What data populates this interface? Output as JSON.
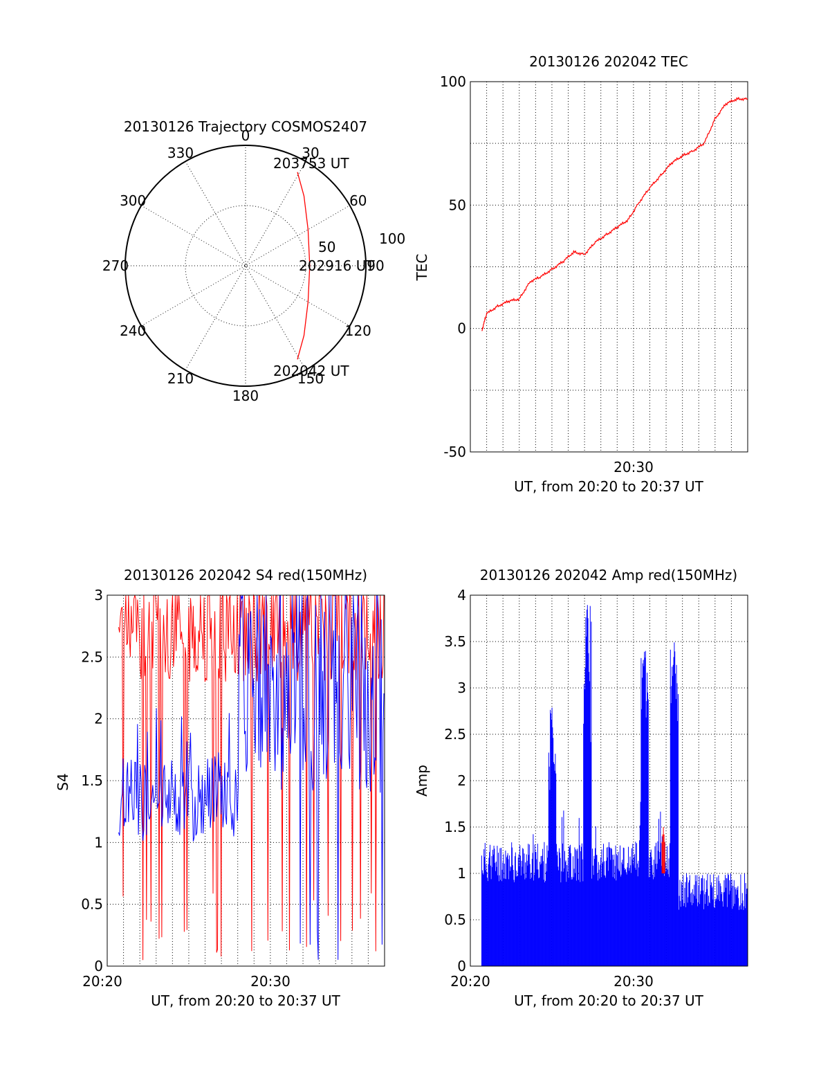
{
  "chart_data": [
    {
      "type": "polar",
      "title": "20130126 Trajectory COSMOS2407",
      "azimuth_labels": [
        "0",
        "30",
        "60",
        "90",
        "120",
        "150",
        "180",
        "210",
        "240",
        "270",
        "300",
        "330"
      ],
      "radius_labels": [
        "50",
        "100"
      ],
      "start_label": "202042 UT",
      "mid_label": "202916 UT",
      "end_label": "203753 UT",
      "trajectory": [
        {
          "az": 151,
          "el": 10
        },
        {
          "az": 140,
          "el": 22
        },
        {
          "az": 120,
          "el": 36
        },
        {
          "az": 90,
          "el": 42
        },
        {
          "az": 60,
          "el": 36
        },
        {
          "az": 40,
          "el": 22
        },
        {
          "az": 29,
          "el": 10
        }
      ],
      "series_color": "#ff0000"
    },
    {
      "type": "line",
      "title": "20130126 202042 TEC",
      "xlabel": "UT, from 20:20 to 20:37 UT",
      "ylabel": "TEC",
      "xlim": [
        "20:20",
        "20:37"
      ],
      "ylim": [
        -50,
        100
      ],
      "yticks": [
        "-50",
        "0",
        "50",
        "100"
      ],
      "xticks": [
        "20:30"
      ],
      "grid": true,
      "series": [
        {
          "color": "#ff0000",
          "x": [
            "20:20:42",
            "20:21:00",
            "20:21:40",
            "20:22:20",
            "20:23:00",
            "20:23:40",
            "20:24:20",
            "20:25:00",
            "20:25:40",
            "20:26:20",
            "20:27:00",
            "20:27:40",
            "20:28:20",
            "20:29:00",
            "20:29:40",
            "20:30:20",
            "20:31:00",
            "20:31:40",
            "20:32:20",
            "20:33:00",
            "20:33:40",
            "20:34:20",
            "20:35:00",
            "20:35:40",
            "20:36:20",
            "20:37:00"
          ],
          "values": [
            -1,
            6,
            9,
            11,
            12,
            19,
            21,
            24,
            27,
            31,
            30,
            35,
            38,
            41,
            44,
            51,
            57,
            62,
            67,
            70,
            72,
            75,
            85,
            91,
            93,
            93
          ]
        }
      ]
    },
    {
      "type": "line",
      "title": "20130126 202042 S4 red(150MHz)",
      "xlabel": "UT, from 20:20 to 20:37 UT",
      "ylabel": "S4",
      "xlim": [
        "20:20",
        "20:37"
      ],
      "ylim": [
        0,
        3
      ],
      "yticks": [
        "0",
        "0.5",
        "1",
        "1.5",
        "2",
        "2.5",
        "3"
      ],
      "xticks": [
        "20:20",
        "20:30"
      ],
      "grid": true,
      "series": [
        {
          "color": "#ff0000",
          "description_level": "noisy, mostly 2.2-3 with drops to 0"
        },
        {
          "color": "#0000ff",
          "description_level": "noisy, 1.0-1.8 early, rising to 3 after 20:30"
        }
      ]
    },
    {
      "type": "bar",
      "title": "20130126 202042 Amp red(150MHz)",
      "xlabel": "UT, from 20:20 to 20:37 UT",
      "ylabel": "Amp",
      "xlim": [
        "20:20",
        "20:37"
      ],
      "ylim": [
        0,
        4
      ],
      "yticks": [
        "0",
        "0.5",
        "1",
        "1.5",
        "2",
        "2.5",
        "3",
        "3.5",
        "4"
      ],
      "xticks": [
        "20:20",
        "20:30"
      ],
      "grid": true,
      "series": [
        {
          "color": "#0000ff",
          "peaks": [
            {
              "x": "20:25:00",
              "value": 2.8
            },
            {
              "x": "20:27:10",
              "value": 3.9
            },
            {
              "x": "20:30:40",
              "value": 3.4
            },
            {
              "x": "20:32:30",
              "value": 3.5
            }
          ]
        },
        {
          "color": "#ff0000",
          "peaks": [
            {
              "x": "20:31:50",
              "value": 1.5
            }
          ]
        }
      ]
    }
  ]
}
